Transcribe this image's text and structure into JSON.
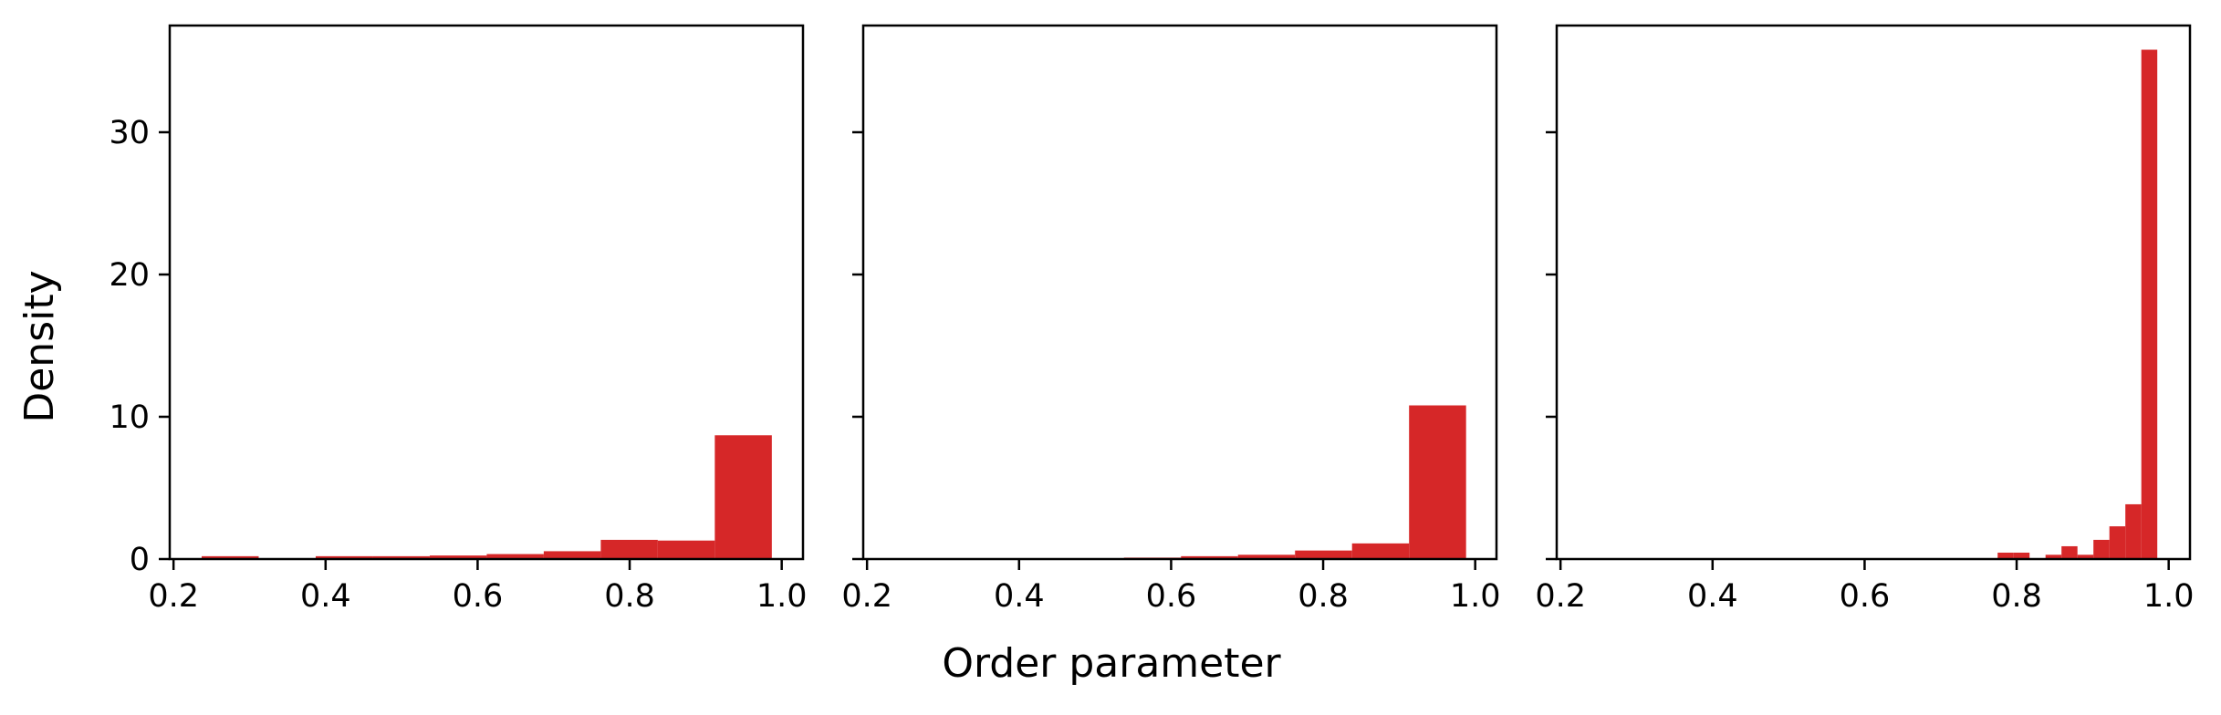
{
  "chart_data": {
    "type": "histogram",
    "shared_y": true,
    "xlabel": "Order parameter",
    "ylabel": "Density",
    "ylim": [
      0,
      37.5
    ],
    "yticks": [
      0,
      10,
      20,
      30
    ],
    "ytick_labels": [
      "0",
      "10",
      "20",
      "30"
    ],
    "grid": false,
    "bar_color": "#d62728",
    "panels": [
      {
        "xlim": [
          0.195,
          1.028
        ],
        "xticks": [
          0.2,
          0.4,
          0.6,
          0.8,
          1.0
        ],
        "xtick_labels": [
          "0.2",
          "0.4",
          "0.6",
          "0.8",
          "1.0"
        ],
        "bins": [
          {
            "x0": 0.237,
            "x1": 0.312,
            "y": 0.2
          },
          {
            "x0": 0.312,
            "x1": 0.387,
            "y": 0.05
          },
          {
            "x0": 0.387,
            "x1": 0.462,
            "y": 0.2
          },
          {
            "x0": 0.462,
            "x1": 0.537,
            "y": 0.2
          },
          {
            "x0": 0.537,
            "x1": 0.612,
            "y": 0.25
          },
          {
            "x0": 0.612,
            "x1": 0.687,
            "y": 0.35
          },
          {
            "x0": 0.687,
            "x1": 0.762,
            "y": 0.55
          },
          {
            "x0": 0.762,
            "x1": 0.837,
            "y": 1.35
          },
          {
            "x0": 0.837,
            "x1": 0.912,
            "y": 1.3
          },
          {
            "x0": 0.912,
            "x1": 0.987,
            "y": 8.7
          }
        ]
      },
      {
        "xlim": [
          0.195,
          1.028
        ],
        "xticks": [
          0.2,
          0.4,
          0.6,
          0.8,
          1.0
        ],
        "xtick_labels": [
          "0.2",
          "0.4",
          "0.6",
          "0.8",
          "1.0"
        ],
        "bins": [
          {
            "x0": 0.538,
            "x1": 0.613,
            "y": 0.1
          },
          {
            "x0": 0.613,
            "x1": 0.688,
            "y": 0.2
          },
          {
            "x0": 0.688,
            "x1": 0.763,
            "y": 0.3
          },
          {
            "x0": 0.763,
            "x1": 0.838,
            "y": 0.6
          },
          {
            "x0": 0.838,
            "x1": 0.913,
            "y": 1.1
          },
          {
            "x0": 0.913,
            "x1": 0.988,
            "y": 10.8
          }
        ]
      },
      {
        "xlim": [
          0.195,
          1.028
        ],
        "xticks": [
          0.2,
          0.4,
          0.6,
          0.8,
          1.0
        ],
        "xtick_labels": [
          "0.2",
          "0.4",
          "0.6",
          "0.8",
          "1.0"
        ],
        "bins": [
          {
            "x0": 0.775,
            "x1": 0.796,
            "y": 0.45
          },
          {
            "x0": 0.796,
            "x1": 0.817,
            "y": 0.45
          },
          {
            "x0": 0.817,
            "x1": 0.838,
            "y": 0.05
          },
          {
            "x0": 0.838,
            "x1": 0.859,
            "y": 0.3
          },
          {
            "x0": 0.859,
            "x1": 0.88,
            "y": 0.9
          },
          {
            "x0": 0.88,
            "x1": 0.901,
            "y": 0.3
          },
          {
            "x0": 0.901,
            "x1": 0.922,
            "y": 1.35
          },
          {
            "x0": 0.922,
            "x1": 0.943,
            "y": 2.3
          },
          {
            "x0": 0.943,
            "x1": 0.964,
            "y": 3.85
          },
          {
            "x0": 0.964,
            "x1": 0.985,
            "y": 35.8
          }
        ]
      }
    ]
  }
}
